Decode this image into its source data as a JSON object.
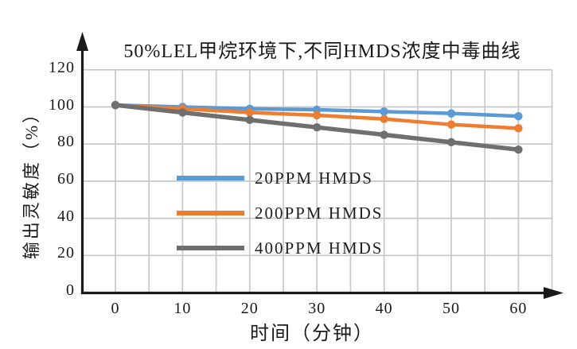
{
  "figure": {
    "background": "#ffffff"
  },
  "chart_data": {
    "type": "line",
    "title": "50%LEL甲烷环境下,不同HMDS浓度中毒曲线",
    "xlabel": "时间（分钟）",
    "ylabel": "输出灵敏度（%）",
    "x": [
      0,
      10,
      20,
      30,
      40,
      50,
      60
    ],
    "x_ticks": [
      "0",
      "10",
      "20",
      "30",
      "40",
      "50",
      "60"
    ],
    "y_ticks": [
      "0",
      "20",
      "40",
      "60",
      "80",
      "100",
      "120"
    ],
    "xlim": [
      0,
      65
    ],
    "ylim": [
      0,
      130
    ],
    "grid": "on",
    "grid_color": "#c8c8c8",
    "axis_color": "#1a1a1a",
    "legend_position": "inside-center-left",
    "series": [
      {
        "name": "20PPM HMDS",
        "color": "#5b9bd5",
        "values": [
          101,
          100,
          99,
          98.5,
          97.5,
          96.5,
          95
        ]
      },
      {
        "name": "200PPM HMDS",
        "color": "#ed7d31",
        "values": [
          101,
          99,
          97,
          95.5,
          93.5,
          90.5,
          88.5
        ]
      },
      {
        "name": "400PPM HMDS",
        "color": "#6f6f6f",
        "values": [
          101,
          97,
          93,
          89,
          85,
          81,
          77
        ]
      }
    ]
  }
}
